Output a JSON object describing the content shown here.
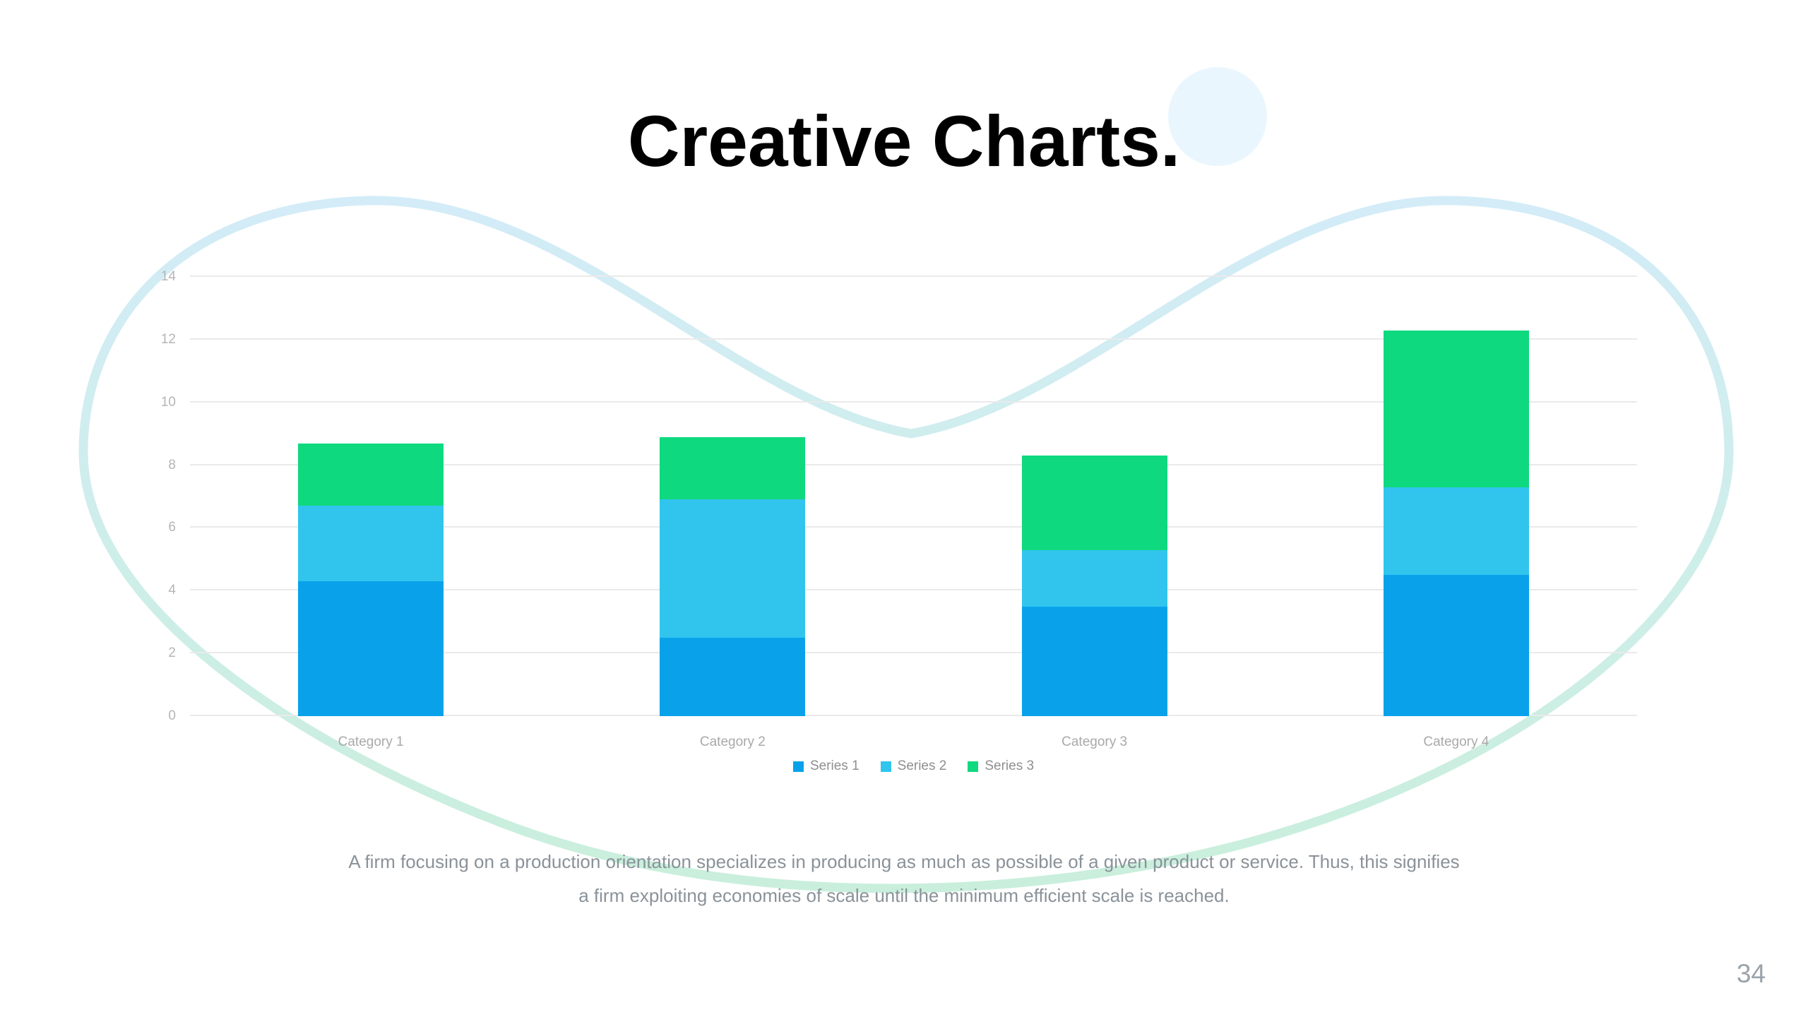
{
  "title": "Creative Charts.",
  "body_text": {
    "line1": "A firm focusing on a production orientation specializes in producing as much as possible of a given product or service. Thus, this signifies",
    "line2": "a firm exploiting economies of scale until the minimum efficient scale is reached."
  },
  "page_number": "34",
  "colors": {
    "series1": "#09A2EA",
    "series2": "#31C5EE",
    "series3": "#0FD97E",
    "gridline": "#EAEAEA",
    "axis_text": "#B5B5B5",
    "body_text": "#8A9299",
    "blob_stroke_top": "#D3ECF8",
    "blob_stroke_bottom": "#C9EFDB",
    "deco_circle": "#E9F6FD"
  },
  "chart_data": {
    "type": "bar",
    "stacked": true,
    "title": "",
    "xlabel": "",
    "ylabel": "",
    "categories": [
      "Category 1",
      "Category 2",
      "Category 3",
      "Category 4"
    ],
    "series": [
      {
        "name": "Series 1",
        "color": "#09A2EA",
        "values": [
          4.3,
          2.5,
          3.5,
          4.5
        ]
      },
      {
        "name": "Series 2",
        "color": "#31C5EE",
        "values": [
          2.4,
          4.4,
          1.8,
          2.8
        ]
      },
      {
        "name": "Series 3",
        "color": "#0FD97E",
        "values": [
          2.0,
          2.0,
          3.0,
          5.0
        ]
      }
    ],
    "ylim": [
      0,
      14
    ],
    "ytick_step": 2,
    "grid": true,
    "legend_position": "bottom"
  }
}
